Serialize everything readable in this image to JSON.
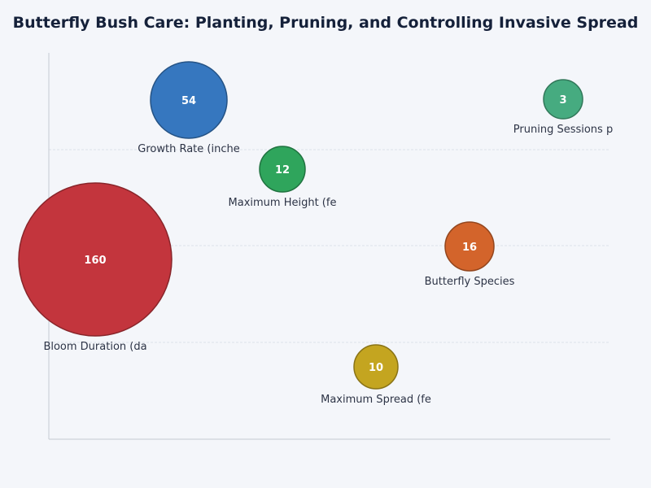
{
  "chart_data": {
    "type": "scatter",
    "subtype": "bubble",
    "title": "Butterfly Bush Care: Planting, Pruning, and Controlling Invasive Spread",
    "xlabel": "",
    "ylabel": "",
    "grid": "horizontal",
    "legend": "none",
    "points": [
      {
        "label": "Growth Rate (inche",
        "value": 54,
        "color": "#3677bf"
      },
      {
        "label": "Maximum Height (fe",
        "value": 12,
        "color": "#2fa55c"
      },
      {
        "label": "Pruning Sessions p",
        "value": 3,
        "color": "#46ab80"
      },
      {
        "label": "Bloom Duration (da",
        "value": 160,
        "color": "#c3353d"
      },
      {
        "label": "Butterfly Species",
        "value": 16,
        "color": "#d3642b"
      },
      {
        "label": "Maximum Spread (fe",
        "value": 10,
        "color": "#c4a520"
      }
    ]
  }
}
